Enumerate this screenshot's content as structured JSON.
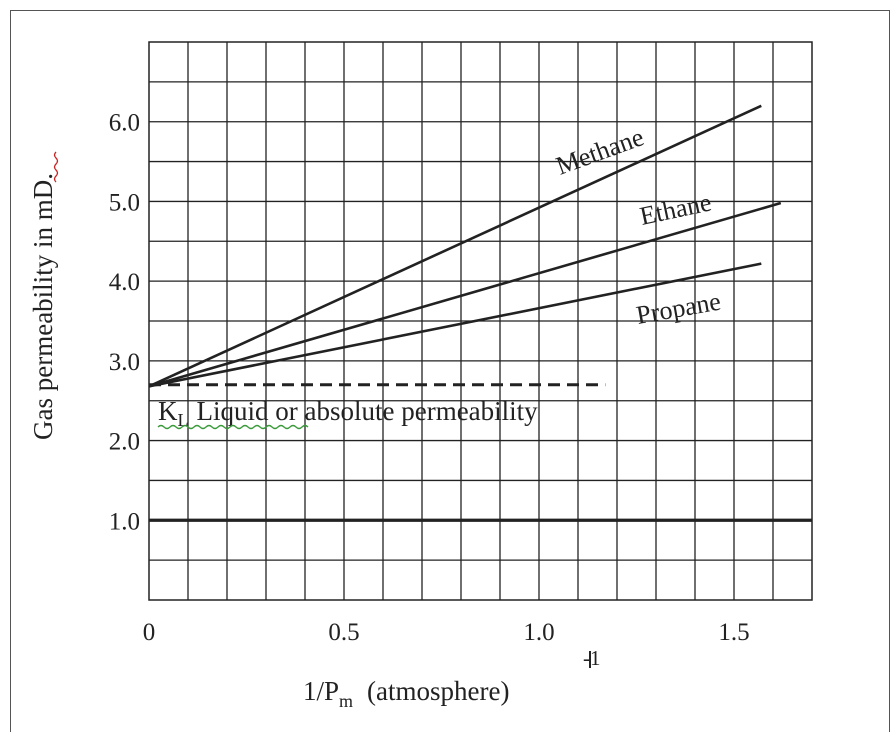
{
  "chart_data": {
    "type": "line",
    "xlabel": "1/P",
    "xlabel_sub": "m",
    "xlabel_rest": "(atmosphere)",
    "xlabel_sup": "-1",
    "ylabel": "Gas permeability in mD.",
    "xlim": [
      0,
      1.7
    ],
    "ylim": [
      0,
      7.0
    ],
    "x_ticks": [
      0,
      0.5,
      1.0,
      1.5
    ],
    "x_tick_labels": [
      "0",
      "0.5",
      "1.0",
      "1.5"
    ],
    "y_ticks": [
      1.0,
      2.0,
      3.0,
      4.0,
      5.0,
      6.0
    ],
    "y_tick_labels": [
      "1.0",
      "2.0",
      "3.0",
      "4.0",
      "5.0",
      "6.0"
    ],
    "grid": true,
    "series": [
      {
        "name": "Methane",
        "x": [
          0,
          1.57
        ],
        "y": [
          2.68,
          6.2
        ]
      },
      {
        "name": "Ethane",
        "x": [
          0,
          1.62
        ],
        "y": [
          2.68,
          4.98
        ]
      },
      {
        "name": "Propane",
        "x": [
          0,
          1.57
        ],
        "y": [
          2.68,
          4.22
        ]
      }
    ],
    "reference_lines": [
      {
        "y": 2.7,
        "x": [
          0,
          1.17
        ],
        "style": "dashed"
      },
      {
        "y": 1.0,
        "x": [
          0,
          1.7
        ],
        "style": "solid"
      }
    ],
    "annotation": {
      "k_symbol": "K",
      "k_sub": "L",
      "liquid": "Liquid",
      "rest": " or absolute permeability"
    },
    "colors": {
      "line": "#222222",
      "grid": "#222222",
      "background": "#ffffff"
    }
  }
}
